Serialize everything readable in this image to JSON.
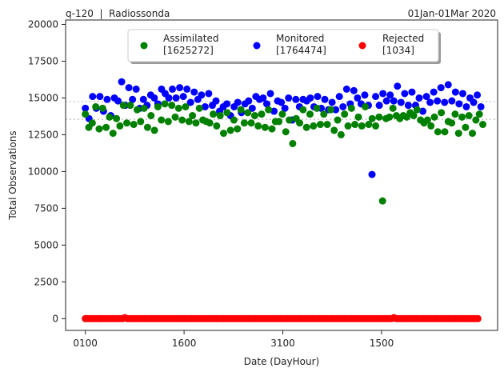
{
  "header": {
    "left": "q-120  |  Radiossonda",
    "right": "01Jan-01Mar 2020"
  },
  "colors": {
    "assimilated": "#008000",
    "monitored": "#0000ff",
    "rejected": "#ff0000",
    "reference_line": "#bbbbbb"
  },
  "chart_data": {
    "type": "scatter",
    "title": "",
    "xlabel": "Date (DayHour)",
    "ylabel": "Total Observations",
    "ylim": [
      -800,
      20300
    ],
    "yticks": [
      0,
      2500,
      5000,
      7500,
      10000,
      12500,
      15000,
      17500,
      20000
    ],
    "xticks": [
      {
        "index": 0,
        "label": "0100"
      },
      {
        "index": 40,
        "label": "1600"
      },
      {
        "index": 80,
        "label": "3100"
      },
      {
        "index": 120,
        "label": "1500"
      }
    ],
    "x_range": [
      -8,
      167
    ],
    "reference_lines": [
      14750,
      13550
    ],
    "legend": [
      {
        "name": "Assimilated",
        "total": "[1625272]"
      },
      {
        "name": "Monitored",
        "total": "[1764474]"
      },
      {
        "name": "Rejected",
        "total": "[1034]"
      }
    ],
    "series": [
      {
        "name": "Assimilated",
        "values": [
          13900,
          13000,
          13300,
          14400,
          12900,
          14300,
          13000,
          13700,
          12600,
          13600,
          13100,
          14500,
          13300,
          14500,
          13200,
          14200,
          13400,
          14300,
          13000,
          13800,
          12800,
          14400,
          13500,
          14600,
          13400,
          14500,
          13700,
          14300,
          13500,
          14400,
          13400,
          13800,
          13300,
          14300,
          13500,
          13400,
          13300,
          13900,
          13100,
          13800,
          12600,
          14000,
          12800,
          13500,
          12900,
          14200,
          13300,
          14000,
          13300,
          13800,
          13100,
          13900,
          13000,
          14200,
          12900,
          13400,
          13400,
          13900,
          12700,
          13500,
          11900,
          13600,
          13300,
          14200,
          13000,
          13900,
          13100,
          14300,
          13200,
          13900,
          13200,
          14200,
          12800,
          13500,
          12500,
          13900,
          13100,
          14300,
          13200,
          13700,
          13100,
          14400,
          13200,
          13600,
          13100,
          13700,
          8000,
          13600,
          13700,
          14300,
          13800,
          13600,
          13800,
          13700,
          14000,
          13800,
          14200,
          13500,
          13300,
          13500,
          13100,
          13700,
          12700,
          14000,
          12700,
          13400,
          13300,
          13900,
          12600,
          13700,
          13000,
          13800,
          12600,
          13500,
          13900,
          13200
        ],
        "x": [
          0,
          1,
          2,
          3,
          4,
          5,
          6,
          7,
          8,
          9,
          10,
          11,
          12,
          13,
          14,
          15,
          16,
          17,
          18,
          19,
          20,
          21,
          22,
          23,
          24,
          25,
          26,
          27,
          28,
          29,
          30,
          31,
          32,
          33,
          34,
          35,
          36,
          37,
          38,
          39,
          40,
          41,
          42,
          43,
          44,
          45,
          46,
          47,
          48,
          49,
          50,
          51,
          52,
          53,
          54,
          55,
          56,
          57,
          58,
          59,
          60,
          61,
          62,
          63,
          64,
          65,
          66,
          67,
          68,
          69,
          70,
          71,
          72,
          73,
          74,
          75,
          76,
          77,
          78,
          79,
          80,
          81,
          82,
          83,
          84,
          85,
          86,
          87,
          88,
          89,
          90,
          91,
          92,
          93,
          94,
          95,
          96,
          97,
          98,
          99,
          100,
          101,
          102,
          103,
          104,
          105,
          106,
          107,
          108,
          109,
          110,
          111,
          112,
          113,
          114,
          115
        ],
        "x_scale": 1.4
      },
      {
        "name": "Monitored",
        "values": [
          14300,
          13600,
          15100,
          14300,
          15100,
          14100,
          14900,
          13800,
          15000,
          14800,
          16100,
          14500,
          15700,
          14900,
          15600,
          14300,
          14900,
          14500,
          15200,
          15000,
          14600,
          15600,
          15300,
          15000,
          15600,
          15000,
          15700,
          15100,
          15600,
          14700,
          15400,
          14900,
          15200,
          14400,
          15300,
          14500,
          14800,
          14100,
          14400,
          14600,
          13800,
          14400,
          14700,
          14000,
          14600,
          14800,
          14300,
          15100,
          14900,
          15000,
          14600,
          15300,
          14100,
          14800,
          14700,
          14300,
          15000,
          13500,
          14900,
          14400,
          14900,
          14800,
          15000,
          14400,
          15100,
          14300,
          14900,
          14200,
          14700,
          14200,
          15100,
          14400,
          15600,
          14600,
          15500,
          15000,
          14600,
          15200,
          14500,
          9800,
          15100,
          14500,
          15300,
          14800,
          15200,
          14800,
          15800,
          14700,
          15300,
          14500,
          15400,
          14500,
          15000,
          14100,
          15100,
          14700,
          15400,
          14800,
          15700,
          14700,
          15900,
          14800,
          15400,
          14600,
          15300,
          14400,
          15000,
          14700,
          15200,
          14400
        ],
        "x_scale": 1.47
      },
      {
        "name": "Rejected",
        "values": [
          0,
          0,
          0,
          0,
          0,
          0,
          0,
          0,
          0,
          0,
          0,
          0,
          0,
          0,
          0,
          0,
          60,
          0,
          0,
          0,
          0,
          0,
          0,
          0,
          0,
          0,
          0,
          0,
          0,
          0,
          0,
          0,
          0,
          0,
          0,
          0,
          0,
          0,
          0,
          0,
          0,
          0,
          0,
          0,
          0,
          0,
          0,
          0,
          0,
          0,
          0,
          0,
          0,
          0,
          0,
          0,
          0,
          0,
          0,
          0,
          0,
          0,
          0,
          0,
          0,
          0,
          0,
          0,
          0,
          0,
          0,
          0,
          0,
          0,
          0,
          0,
          0,
          0,
          0,
          0,
          0,
          0,
          0,
          0,
          0,
          0,
          0,
          0,
          0,
          0,
          0,
          0,
          0,
          0,
          0,
          0,
          0,
          0,
          0,
          0,
          0,
          0,
          0,
          0,
          0,
          0,
          0,
          0,
          0,
          0,
          0,
          0,
          0,
          0,
          0,
          0,
          0,
          0,
          0,
          0,
          0,
          0,
          0,
          0,
          0,
          60,
          0,
          0,
          0,
          0,
          0,
          0,
          0,
          0,
          0,
          0,
          0,
          0,
          0,
          0,
          0,
          0,
          0,
          0,
          0,
          0,
          0,
          0,
          0,
          0,
          0,
          0,
          0,
          0,
          0,
          0,
          0,
          0,
          0,
          0
        ],
        "x_scale": 1.0
      }
    ]
  }
}
